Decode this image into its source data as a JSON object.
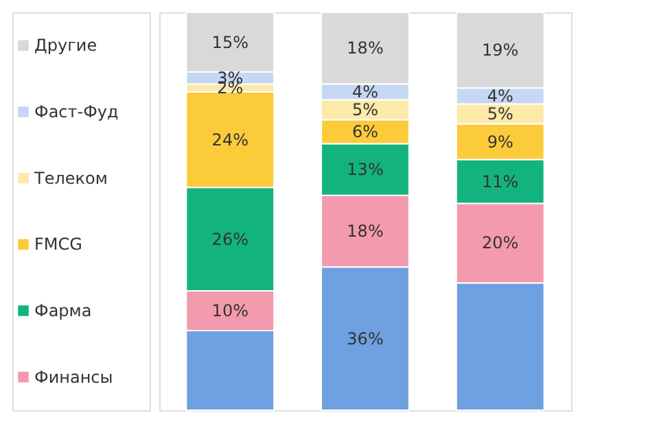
{
  "chart_data": {
    "type": "bar",
    "stacked": true,
    "legend": "left",
    "tick_labels": false,
    "categories": [
      null,
      null,
      null
    ],
    "series": [
      {
        "color": "#6fa0e0",
        "values": [
          20,
          36,
          32
        ],
        "value_labels": [
          null,
          "36%",
          null
        ]
      },
      {
        "name": "Финансы",
        "color": "#f49aae",
        "values": [
          10,
          18,
          20
        ],
        "value_labels": [
          "10%",
          "18%",
          "20%"
        ]
      },
      {
        "name": "Фарма",
        "color": "#13b37f",
        "values": [
          26,
          13,
          11
        ],
        "value_labels": [
          "26%",
          "13%",
          "11%"
        ]
      },
      {
        "name": "FMCG",
        "color": "#fccb3a",
        "values": [
          24,
          6,
          9
        ],
        "value_labels": [
          "24%",
          "6%",
          "9%"
        ]
      },
      {
        "name": "Телеком",
        "color": "#fde9a8",
        "values": [
          2,
          5,
          5
        ],
        "value_labels": [
          "2%",
          "5%",
          "5%"
        ]
      },
      {
        "name": "Фаст-Фуд",
        "color": "#c5d7f2",
        "values": [
          3,
          4,
          4
        ],
        "value_labels": [
          "3%",
          "4%",
          "4%"
        ]
      },
      {
        "name": "Другие",
        "color": "#d9d9d9",
        "values": [
          15,
          18,
          19
        ],
        "value_labels": [
          "15%",
          "18%",
          "19%"
        ]
      }
    ]
  }
}
